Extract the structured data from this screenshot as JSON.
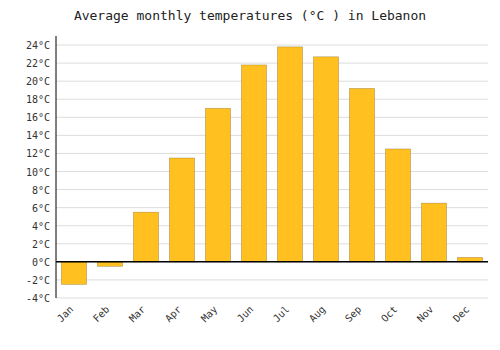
{
  "chart_data": {
    "type": "bar",
    "title": "Average monthly temperatures (°C ) in Lebanon",
    "categories": [
      "Jan",
      "Feb",
      "Mar",
      "Apr",
      "May",
      "Jun",
      "Jul",
      "Aug",
      "Sep",
      "Oct",
      "Nov",
      "Dec"
    ],
    "values": [
      -2.5,
      -0.5,
      5.5,
      11.5,
      17.0,
      21.8,
      23.8,
      22.7,
      19.2,
      12.5,
      6.5,
      0.5
    ],
    "color": "#FFC020",
    "ylim": [
      -4,
      25
    ],
    "yticks": [
      {
        "value": -4,
        "label": "-4°C"
      },
      {
        "value": -2,
        "label": "-2°C"
      },
      {
        "value": 0,
        "label": "0°C"
      },
      {
        "value": 2,
        "label": "2°C"
      },
      {
        "value": 4,
        "label": "4°C"
      },
      {
        "value": 6,
        "label": "6°C"
      },
      {
        "value": 8,
        "label": "8°C"
      },
      {
        "value": 10,
        "label": "10°C"
      },
      {
        "value": 12,
        "label": "12°C"
      },
      {
        "value": 14,
        "label": "14°C"
      },
      {
        "value": 16,
        "label": "16°C"
      },
      {
        "value": 18,
        "label": "18°C"
      },
      {
        "value": 20,
        "label": "20°C"
      },
      {
        "value": 22,
        "label": "22°C"
      },
      {
        "value": 24,
        "label": "24°C"
      }
    ],
    "grid": true
  }
}
